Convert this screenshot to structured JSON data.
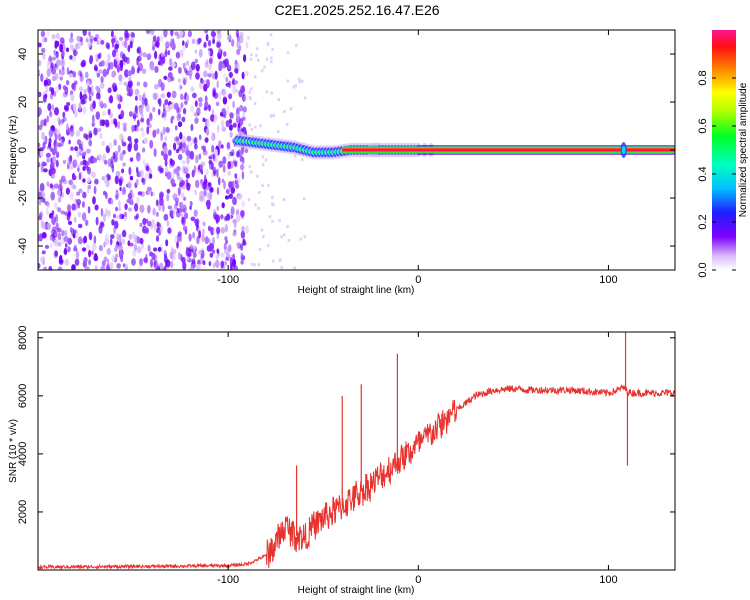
{
  "figure": {
    "title": "C2E1.2025.252.16.47.E26"
  },
  "chart_data": [
    {
      "type": "heatmap",
      "name": "spectrogram",
      "xlabel": "Height of straight line (km)",
      "ylabel": "Frequency (Hz)",
      "xlim": [
        -200,
        135
      ],
      "ylim": [
        -50,
        50
      ],
      "xticks": [
        -100,
        0,
        100
      ],
      "yticks": [
        -40,
        -20,
        0,
        20,
        40
      ],
      "noise_region_x": [
        -200,
        -90
      ],
      "signal_trace": {
        "x": [
          -95,
          -85,
          -75,
          -65,
          -55,
          -45,
          -35,
          -25,
          -20,
          -10,
          0,
          20,
          60,
          100,
          108,
          120,
          135
        ],
        "freq": [
          4,
          3,
          2,
          1,
          -1,
          -1,
          0,
          0,
          0,
          0,
          0,
          0,
          0,
          0,
          0,
          0,
          0
        ]
      },
      "colorbar": {
        "label": "Normalized spectral amplitude",
        "range": [
          0.0,
          1.0
        ],
        "ticks": [
          "0.0",
          "0.2",
          "0.4",
          "0.6",
          "0.8"
        ]
      }
    },
    {
      "type": "line",
      "name": "snr",
      "xlabel": "Height of straight line (km)",
      "ylabel": "SNR (10 * v/v)",
      "xlim": [
        -200,
        135
      ],
      "ylim": [
        0,
        8200
      ],
      "xticks": [
        -100,
        0,
        100
      ],
      "yticks": [
        2000,
        4000,
        6000,
        8000
      ],
      "color": "#e8322e",
      "series": {
        "name": "SNR",
        "x": [
          -200,
          -150,
          -100,
          -90,
          -80,
          -75,
          -70,
          -65,
          -60,
          -55,
          -50,
          -40,
          -30,
          -20,
          -10,
          0,
          10,
          20,
          30,
          40,
          50,
          60,
          80,
          100,
          105,
          108,
          110,
          112,
          115,
          120,
          135
        ],
        "y": [
          100,
          120,
          150,
          200,
          500,
          900,
          1500,
          1200,
          1100,
          1500,
          1800,
          2200,
          2700,
          3200,
          3800,
          4300,
          4900,
          5500,
          6000,
          6200,
          6250,
          6200,
          6200,
          6100,
          6200,
          6300,
          6150,
          6100,
          6100,
          6100,
          6100
        ]
      },
      "spikes": [
        {
          "x": -64,
          "y": 3600
        },
        {
          "x": -40,
          "y": 6000
        },
        {
          "x": -30,
          "y": 6400
        },
        {
          "x": -11,
          "y": 7450
        },
        {
          "x": 109,
          "y": 8200
        },
        {
          "x": 110,
          "y": 3600
        }
      ]
    }
  ]
}
